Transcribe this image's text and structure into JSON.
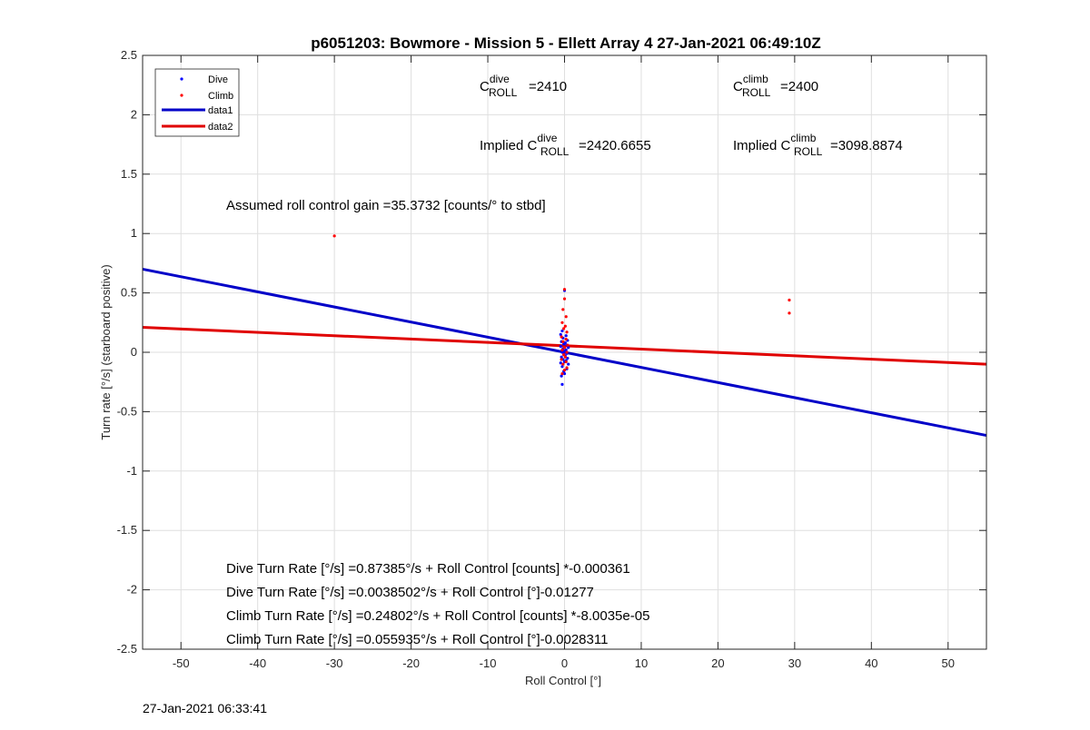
{
  "chart_data": {
    "type": "scatter",
    "title": "p6051203: Bowmore - Mission 5 - Ellett Array 4 27-Jan-2021 06:49:10Z",
    "xlabel": "Roll Control [°]",
    "ylabel": "Turn rate [°/s] (starboard positive)",
    "xlim": [
      -55,
      55
    ],
    "ylim": [
      -2.5,
      2.5
    ],
    "xticks": [
      -50,
      -40,
      -30,
      -20,
      -10,
      0,
      10,
      20,
      30,
      40,
      50
    ],
    "xtick_labels": [
      "-50",
      "-40",
      "-30",
      "-20",
      "-10",
      "0",
      "10",
      "20",
      "30",
      "40",
      "50"
    ],
    "yticks": [
      -2.5,
      -2,
      -1.5,
      -1,
      -0.5,
      0,
      0.5,
      1,
      1.5,
      2,
      2.5
    ],
    "ytick_labels": [
      "-2.5",
      "-2",
      "-1.5",
      "-1",
      "-0.5",
      "0",
      "0.5",
      "1",
      "1.5",
      "2",
      "2.5"
    ],
    "grid": true,
    "legend_position": "top-left",
    "series": [
      {
        "name": "Dive",
        "kind": "scatter",
        "color": "#0000ff",
        "points": [
          [
            0,
            0.52
          ],
          [
            -0.3,
            0.18
          ],
          [
            -0.5,
            0.15
          ],
          [
            0.2,
            0.14
          ],
          [
            -0.2,
            0.12
          ],
          [
            0.4,
            0.1
          ],
          [
            -0.4,
            0.09
          ],
          [
            0.1,
            0.08
          ],
          [
            -0.1,
            0.07
          ],
          [
            0.3,
            0.06
          ],
          [
            -0.5,
            0.05
          ],
          [
            0.5,
            0.04
          ],
          [
            -0.2,
            0.03
          ],
          [
            0.2,
            0.02
          ],
          [
            0,
            0.01
          ],
          [
            -0.3,
            0.0
          ],
          [
            0.3,
            -0.01
          ],
          [
            -0.1,
            -0.02
          ],
          [
            0.1,
            -0.03
          ],
          [
            -0.4,
            -0.04
          ],
          [
            0.4,
            -0.05
          ],
          [
            -0.2,
            -0.06
          ],
          [
            0.2,
            -0.07
          ],
          [
            0,
            -0.08
          ],
          [
            -0.5,
            -0.09
          ],
          [
            0.5,
            -0.1
          ],
          [
            -0.3,
            -0.12
          ],
          [
            0.3,
            -0.14
          ],
          [
            -0.1,
            -0.16
          ],
          [
            0,
            -0.18
          ],
          [
            -0.4,
            -0.2
          ],
          [
            -0.3,
            -0.27
          ]
        ]
      },
      {
        "name": "Climb",
        "kind": "scatter",
        "color": "#ff0000",
        "points": [
          [
            -30,
            0.98
          ],
          [
            29.3,
            0.44
          ],
          [
            29.3,
            0.33
          ],
          [
            0,
            0.53
          ],
          [
            0,
            0.45
          ],
          [
            -0.2,
            0.36
          ],
          [
            0.2,
            0.3
          ],
          [
            -0.3,
            0.25
          ],
          [
            0.1,
            0.22
          ],
          [
            -0.1,
            0.2
          ],
          [
            0.3,
            0.17
          ],
          [
            -0.4,
            0.13
          ],
          [
            0.2,
            0.11
          ],
          [
            -0.2,
            0.09
          ],
          [
            0.4,
            0.06
          ],
          [
            0,
            0.04
          ],
          [
            -0.3,
            0.02
          ],
          [
            0.3,
            0.0
          ],
          [
            -0.1,
            -0.02
          ],
          [
            0.1,
            -0.04
          ],
          [
            -0.4,
            -0.06
          ],
          [
            0.2,
            -0.08
          ],
          [
            -0.2,
            -0.1
          ],
          [
            0.3,
            -0.13
          ],
          [
            0,
            -0.15
          ],
          [
            -0.3,
            -0.18
          ]
        ]
      },
      {
        "name": "data1",
        "kind": "line",
        "color": "#0000c8",
        "points": [
          [
            -55,
            0.7
          ],
          [
            55,
            -0.7
          ]
        ]
      },
      {
        "name": "data2",
        "kind": "line",
        "color": "#e00000",
        "points": [
          [
            -55,
            0.21
          ],
          [
            55,
            -0.1
          ]
        ]
      }
    ],
    "annotations": {
      "c_roll_dive": {
        "base": "C",
        "sup": "dive",
        "sub": "ROLL",
        "value": "=2410"
      },
      "c_roll_climb": {
        "base": "C",
        "sup": "climb",
        "sub": "ROLL",
        "value": "=2400"
      },
      "implied_dive": {
        "prefix": "Implied C",
        "sup": "dive",
        "sub": "ROLL",
        "value": "=2420.6655"
      },
      "implied_climb": {
        "prefix": "Implied C",
        "sup": "climb",
        "sub": "ROLL",
        "value": "=3098.8874"
      },
      "gain": "Assumed roll control gain =35.3732 [counts/° to stbd]",
      "equations": [
        "Dive Turn Rate [°/s] =0.87385°/s + Roll Control [counts] *-0.000361",
        "Dive Turn Rate [°/s] =0.0038502°/s + Roll Control [°]-0.01277",
        "Climb Turn Rate [°/s] =0.24802°/s + Roll Control [counts] *-8.0035e-05",
        "Climb Turn Rate [°/s] =0.055935°/s + Roll Control [°]-0.0028311"
      ]
    }
  },
  "footer_timestamp": "27-Jan-2021 06:33:41"
}
